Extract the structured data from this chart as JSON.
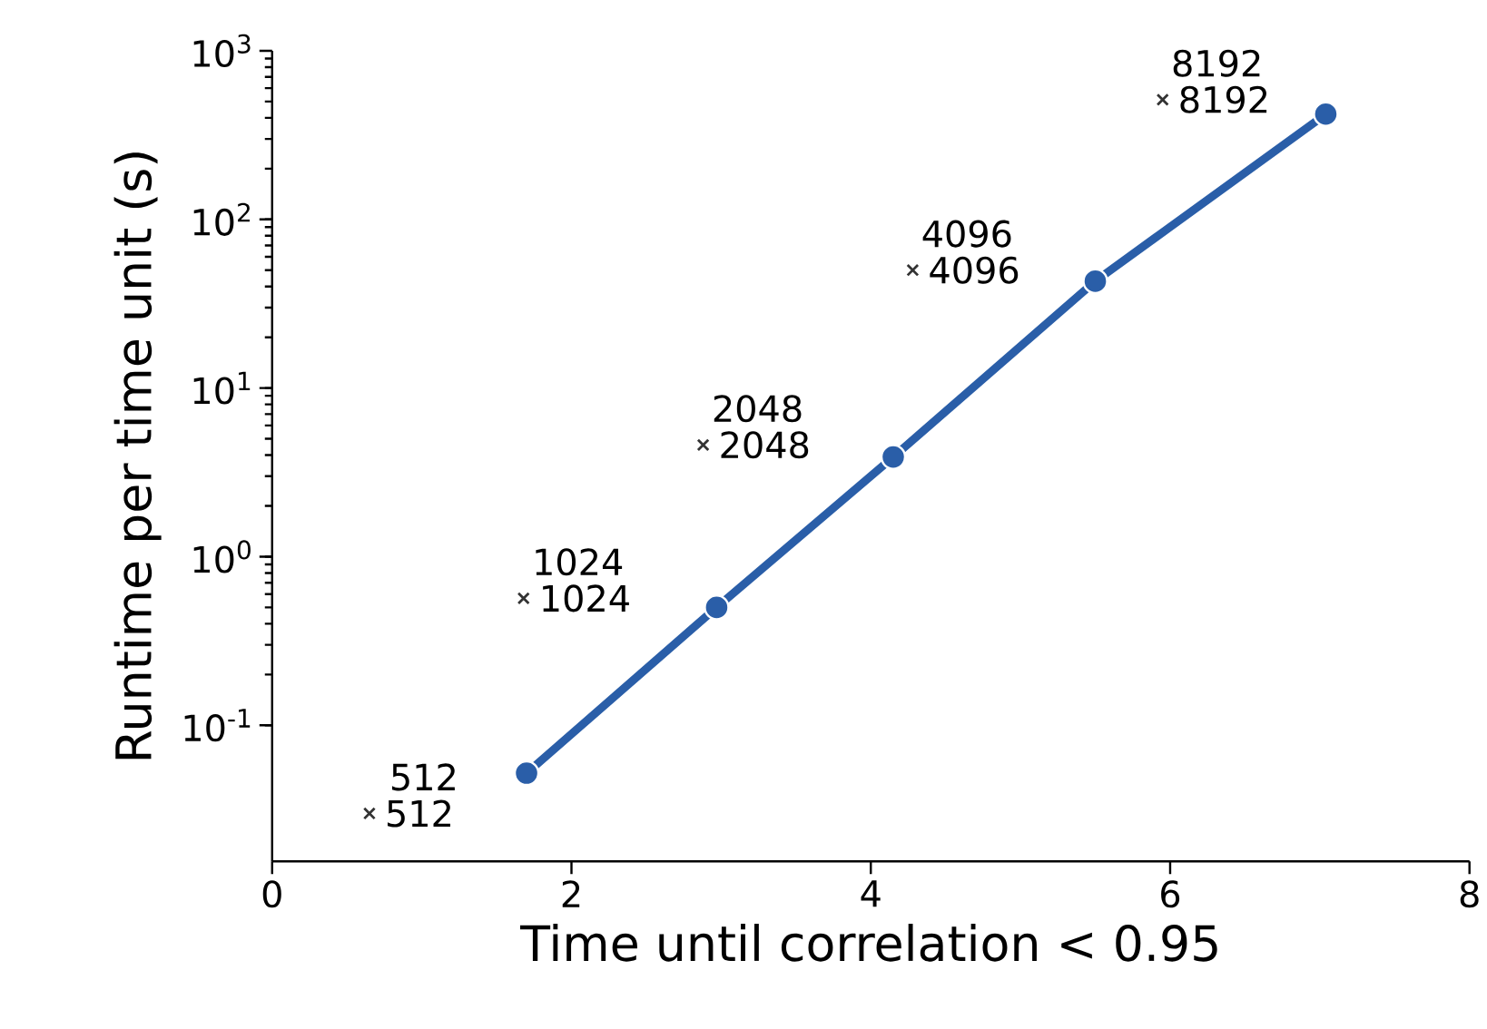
{
  "chart_data": {
    "type": "line",
    "xlabel": "Time until correlation < 0.95",
    "ylabel": "Runtime per time unit (s)",
    "log": "y",
    "xlim": [
      0,
      8
    ],
    "xticks": [
      0,
      2,
      4,
      6,
      8
    ],
    "ylim": [
      0.0156,
      1000
    ],
    "yticks": [
      {
        "value": 0.1,
        "label": "10$^{-1}$"
      },
      {
        "value": 1,
        "label": "10$^{0}$"
      },
      {
        "value": 10,
        "label": "10$^{1}$"
      },
      {
        "value": 100,
        "label": "10$^{2}$"
      },
      {
        "value": 1000,
        "label": "10$^{3}$"
      }
    ],
    "series": [
      {
        "color": "#2a5ea8",
        "marker": "circle",
        "line_style": "solid",
        "x": [
          1.7,
          2.97,
          4.15,
          5.5,
          7.04
        ],
        "values": [
          0.052,
          0.5,
          3.9,
          43,
          421
        ]
      },
      {
        "type": "scatter",
        "color": "#333333",
        "marker": "cross",
        "x": [
          0.65,
          1.68,
          2.88,
          4.28,
          5.95
        ],
        "values": [
          0.03,
          0.566,
          4.6,
          50,
          513
        ]
      }
    ],
    "annotations": [
      {
        "text": "512",
        "x": 0.65,
        "y": 0.03
      },
      {
        "text": "1024",
        "x": 1.68,
        "y": 0.566
      },
      {
        "text": "2048",
        "x": 2.88,
        "y": 4.6
      },
      {
        "text": "4096",
        "x": 4.28,
        "y": 50
      },
      {
        "text": "8192",
        "x": 5.95,
        "y": 513
      },
      {
        "text": "512",
        "x": 0.65,
        "y": 0.03
      },
      {
        "text": "1024",
        "x": 1.68,
        "y": 0.566
      },
      {
        "text": "2048",
        "x": 2.88,
        "y": 4.6
      },
      {
        "text": "4096",
        "x": 4.28,
        "y": 50
      },
      {
        "text": "8192",
        "x": 5.95,
        "y": 513
      }
    ]
  }
}
